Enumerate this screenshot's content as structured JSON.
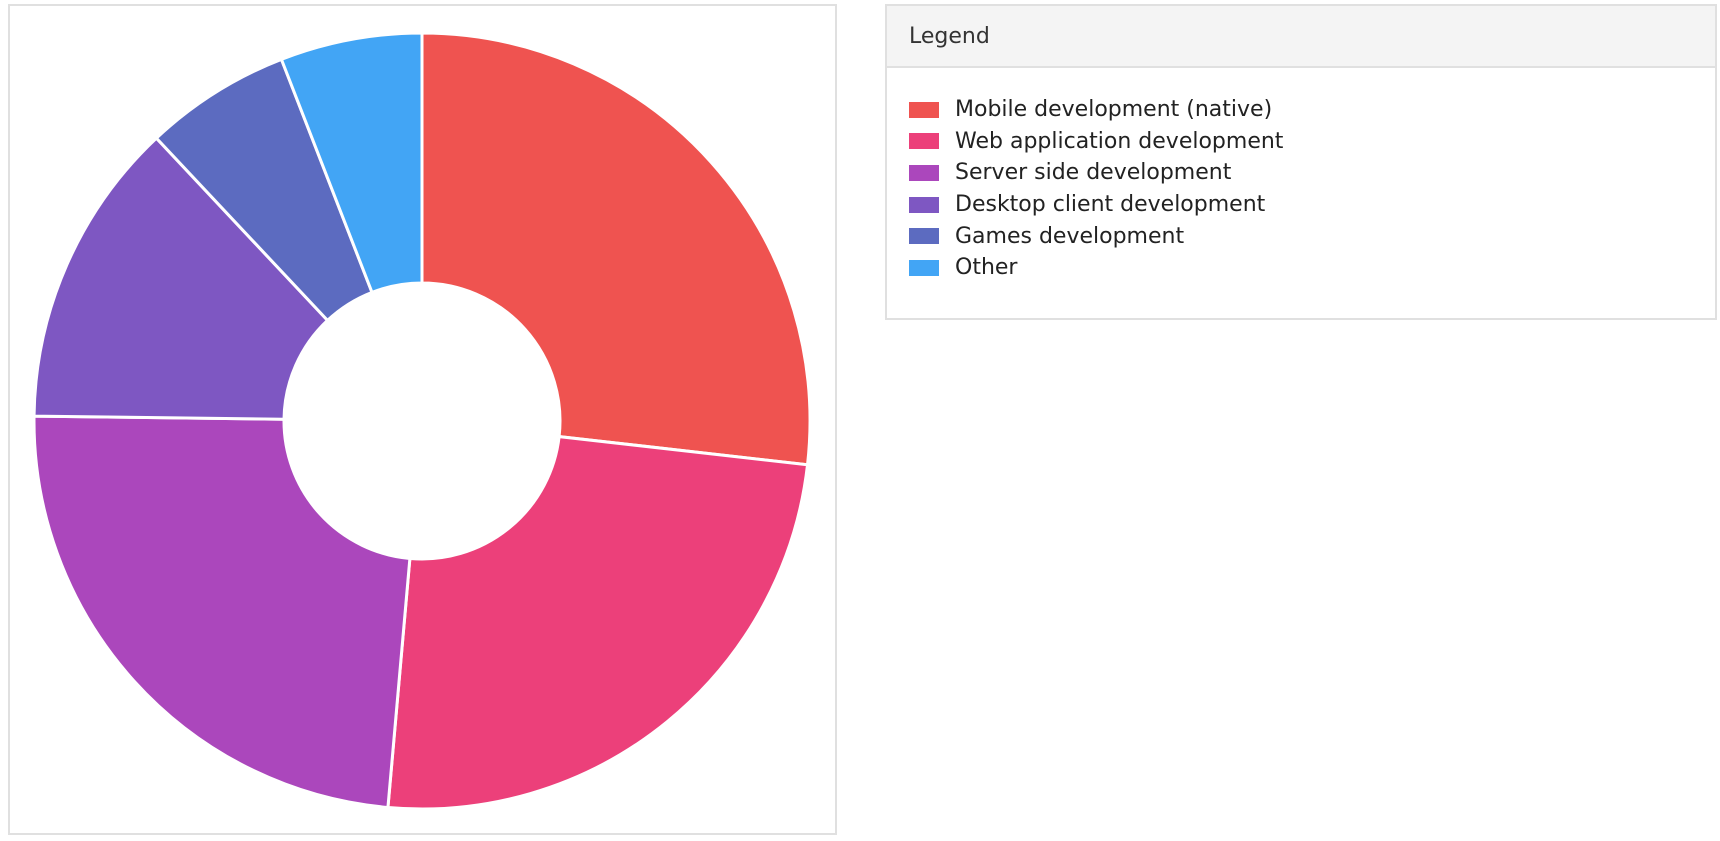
{
  "legend": {
    "title": "Legend"
  },
  "chart_data": {
    "type": "pie",
    "variant": "donut",
    "title": "",
    "legend_position": "right",
    "categories": [
      "Mobile development (native)",
      "Web application development",
      "Server side development",
      "Desktop client development",
      "Games development",
      "Other"
    ],
    "values": [
      26.8,
      24.6,
      23.8,
      12.8,
      6.1,
      5.9
    ],
    "colors": [
      "#ef5350",
      "#ec407a",
      "#ab47bc",
      "#7e57c2",
      "#5c6bc0",
      "#42a5f5"
    ]
  }
}
